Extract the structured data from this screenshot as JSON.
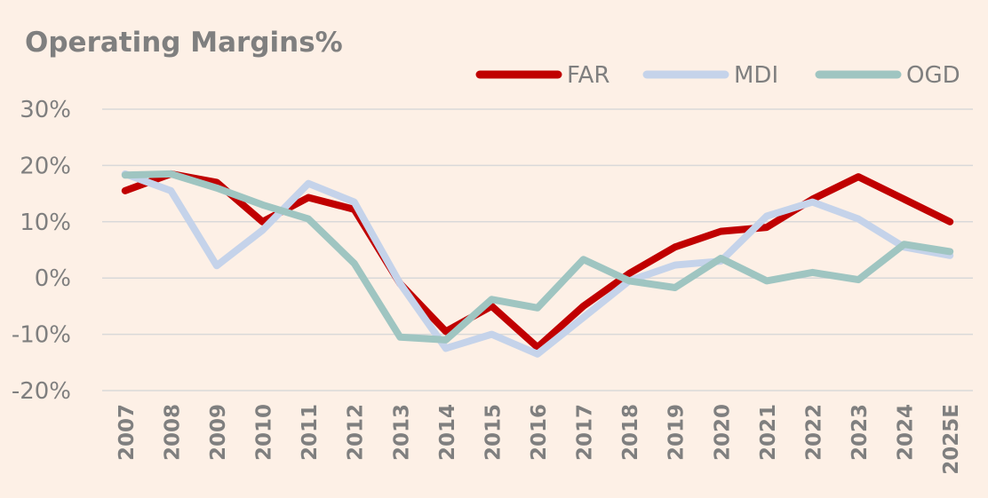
{
  "chart_data": {
    "type": "line",
    "title": "Operating Margins%",
    "xlabel": "",
    "ylabel": "",
    "categories": [
      "2007",
      "2008",
      "2009",
      "2010",
      "2011",
      "2012",
      "2013",
      "2014",
      "2015",
      "2016",
      "2017",
      "2018",
      "2019",
      "2020",
      "2021",
      "2022",
      "2023",
      "2024",
      "2025E"
    ],
    "yticks": [
      30,
      20,
      10,
      0,
      -10,
      -20
    ],
    "ytick_labels": [
      "30%",
      "20%",
      "10%",
      "0%",
      "-10%",
      "-20%"
    ],
    "ylim": [
      -20,
      30
    ],
    "grid": true,
    "legend_position": "top-right",
    "series": [
      {
        "name": "FAR",
        "color": "#c00000",
        "values": [
          15.5,
          18.5,
          17,
          10,
          14.3,
          12.2,
          -1,
          -9.5,
          -5,
          -12.3,
          -5,
          0.8,
          5.5,
          8.3,
          9,
          14,
          18,
          14,
          10
        ]
      },
      {
        "name": "MDI",
        "color": "#c5d3ea",
        "values": [
          18.5,
          15.5,
          2.2,
          8.5,
          16.8,
          13.5,
          -1,
          -12.5,
          -10,
          -13.5,
          -7,
          -0.5,
          2.3,
          3,
          11,
          13.5,
          10.5,
          5.5,
          4
        ]
      },
      {
        "name": "OGD",
        "color": "#9fc5c1",
        "values": [
          18.3,
          18.5,
          16,
          13,
          10.5,
          2.6,
          -10.5,
          -11,
          -3.8,
          -5.3,
          3.3,
          -0.5,
          -1.7,
          3.5,
          -0.5,
          1,
          -0.3,
          6,
          4.7
        ]
      }
    ]
  }
}
